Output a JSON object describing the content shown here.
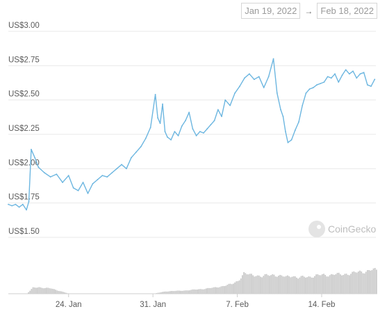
{
  "date_range": {
    "from": "Jan 19, 2022",
    "separator": "→",
    "to": "Feb 18, 2022"
  },
  "watermark": {
    "text": "CoinGecko"
  },
  "chart_data": {
    "type": "line",
    "title": "",
    "xlabel": "",
    "ylabel": "",
    "ylim": [
      1.5,
      3.0
    ],
    "grid": true,
    "legend": "none",
    "line_color": "#6cb6e0",
    "volume_color": "#c9c9c9",
    "y_ticks": [
      {
        "value": 3.0,
        "label": "US$3.00"
      },
      {
        "value": 2.75,
        "label": "US$2.75"
      },
      {
        "value": 2.5,
        "label": "US$2.50"
      },
      {
        "value": 2.25,
        "label": "US$2.25"
      },
      {
        "value": 2.0,
        "label": "US$2.00"
      },
      {
        "value": 1.75,
        "label": "US$1.75"
      },
      {
        "value": 1.5,
        "label": "US$1.50"
      }
    ],
    "x_ticks": [
      {
        "day": 5.0,
        "label": "24. Jan"
      },
      {
        "day": 12.0,
        "label": "31. Jan"
      },
      {
        "day": 19.0,
        "label": "7. Feb"
      },
      {
        "day": 26.0,
        "label": "14. Feb"
      }
    ],
    "x_range": [
      0,
      30.5
    ],
    "price_series": {
      "name": "Price",
      "x": [
        0,
        0.3,
        0.6,
        0.9,
        1.2,
        1.5,
        1.7,
        1.9,
        2.2,
        2.5,
        3.0,
        3.5,
        4.0,
        4.5,
        5.0,
        5.4,
        5.8,
        6.2,
        6.6,
        7.0,
        7.4,
        7.8,
        8.2,
        8.6,
        9.0,
        9.4,
        9.8,
        10.2,
        10.6,
        11.0,
        11.4,
        11.8,
        12.2,
        12.4,
        12.6,
        12.8,
        13.0,
        13.2,
        13.5,
        13.8,
        14.1,
        14.4,
        14.7,
        15.0,
        15.3,
        15.6,
        15.9,
        16.2,
        16.5,
        16.8,
        17.1,
        17.4,
        17.7,
        18.0,
        18.4,
        18.8,
        19.2,
        19.6,
        20.0,
        20.4,
        20.8,
        21.2,
        21.6,
        22.0,
        22.3,
        22.6,
        22.8,
        23.0,
        23.2,
        23.5,
        23.8,
        24.1,
        24.4,
        24.7,
        25.0,
        25.3,
        25.6,
        25.9,
        26.2,
        26.5,
        26.8,
        27.1,
        27.4,
        27.7,
        28.0,
        28.3,
        28.6,
        28.9,
        29.2,
        29.5,
        29.8,
        30.1,
        30.4
      ],
      "y": [
        1.74,
        1.73,
        1.74,
        1.72,
        1.74,
        1.7,
        1.76,
        2.14,
        2.08,
        2.01,
        1.97,
        1.94,
        1.96,
        1.9,
        1.95,
        1.86,
        1.84,
        1.9,
        1.82,
        1.89,
        1.92,
        1.95,
        1.94,
        1.97,
        2.0,
        2.03,
        2.0,
        2.08,
        2.12,
        2.16,
        2.22,
        2.3,
        2.54,
        2.37,
        2.33,
        2.47,
        2.27,
        2.23,
        2.21,
        2.27,
        2.24,
        2.31,
        2.35,
        2.41,
        2.29,
        2.24,
        2.27,
        2.26,
        2.29,
        2.32,
        2.35,
        2.43,
        2.38,
        2.5,
        2.46,
        2.55,
        2.6,
        2.66,
        2.69,
        2.65,
        2.67,
        2.59,
        2.67,
        2.8,
        2.55,
        2.43,
        2.38,
        2.27,
        2.19,
        2.21,
        2.28,
        2.34,
        2.46,
        2.55,
        2.58,
        2.59,
        2.61,
        2.62,
        2.63,
        2.67,
        2.66,
        2.69,
        2.63,
        2.68,
        2.72,
        2.69,
        2.71,
        2.66,
        2.69,
        2.7,
        2.61,
        2.6,
        2.65
      ]
    },
    "volume_series": {
      "name": "Volume",
      "ylim": [
        0,
        1
      ],
      "x": [
        0,
        1.5,
        2.0,
        2.5,
        3.0,
        3.5,
        4.0,
        5,
        7,
        9,
        11,
        12,
        13,
        14,
        15,
        16,
        17,
        18,
        18.5,
        19,
        19.5,
        20,
        20.5,
        21,
        21.5,
        22,
        22.5,
        23,
        23.5,
        24,
        24.5,
        25,
        25.5,
        26,
        26.5,
        27,
        27.5,
        28,
        28.5,
        29,
        29.5,
        30,
        30.5
      ],
      "y": [
        0.0,
        0.0,
        0.25,
        0.28,
        0.24,
        0.22,
        0.15,
        0.0,
        0.0,
        0.0,
        0.0,
        0.0,
        0.1,
        0.12,
        0.15,
        0.2,
        0.25,
        0.35,
        0.4,
        0.55,
        0.85,
        0.78,
        0.8,
        0.72,
        0.77,
        0.82,
        0.74,
        0.7,
        0.78,
        0.66,
        0.7,
        0.73,
        0.76,
        0.78,
        0.8,
        0.82,
        0.79,
        0.85,
        0.86,
        0.9,
        0.95,
        1.0,
        0.97
      ]
    }
  }
}
